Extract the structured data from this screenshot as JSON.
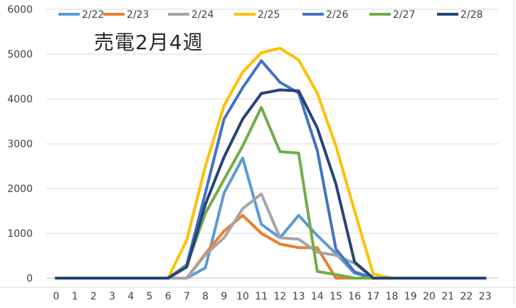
{
  "chart_data": {
    "type": "line",
    "title": "売電2月4週",
    "xlabel": "",
    "ylabel": "",
    "x": [
      0,
      1,
      2,
      3,
      4,
      5,
      6,
      7,
      8,
      9,
      10,
      11,
      12,
      13,
      14,
      15,
      16,
      17,
      18,
      19,
      20,
      21,
      22,
      23
    ],
    "ylim": [
      0,
      6000
    ],
    "yticks": [
      0,
      1000,
      2000,
      3000,
      4000,
      5000,
      6000
    ],
    "grid": true,
    "legend_position": "top",
    "series": [
      {
        "name": "2/22",
        "color": "#5b9bd5",
        "values": [
          0,
          0,
          0,
          0,
          0,
          0,
          0,
          0,
          230,
          1900,
          2680,
          1200,
          900,
          1400,
          950,
          550,
          110,
          0,
          0,
          0,
          0,
          0,
          0,
          0
        ]
      },
      {
        "name": "2/23",
        "color": "#ed7d31",
        "values": [
          0,
          0,
          0,
          0,
          0,
          0,
          0,
          0,
          550,
          1050,
          1400,
          1000,
          760,
          680,
          680,
          0,
          0,
          0,
          0,
          0,
          0,
          0,
          0,
          0
        ]
      },
      {
        "name": "2/24",
        "color": "#a5a5a5",
        "values": [
          0,
          0,
          0,
          0,
          0,
          0,
          0,
          0,
          520,
          900,
          1550,
          1880,
          900,
          870,
          580,
          510,
          330,
          0,
          0,
          0,
          0,
          0,
          0,
          0
        ]
      },
      {
        "name": "2/25",
        "color": "#ffc000",
        "values": [
          0,
          0,
          0,
          0,
          0,
          0,
          0,
          850,
          2500,
          3850,
          4600,
          5030,
          5130,
          4870,
          4130,
          2950,
          1500,
          90,
          0,
          0,
          0,
          0,
          0,
          0
        ]
      },
      {
        "name": "2/26",
        "color": "#4472c4",
        "values": [
          0,
          0,
          0,
          0,
          0,
          0,
          0,
          300,
          1900,
          3550,
          4250,
          4850,
          4370,
          4130,
          2850,
          650,
          140,
          0,
          0,
          0,
          0,
          0,
          0,
          0
        ]
      },
      {
        "name": "2/27",
        "color": "#70ad47",
        "values": [
          0,
          0,
          0,
          0,
          0,
          0,
          0,
          280,
          1450,
          2200,
          2950,
          3810,
          2820,
          2790,
          150,
          80,
          0,
          0,
          0,
          0,
          0,
          0,
          0,
          0
        ]
      },
      {
        "name": "2/28",
        "color": "#264478",
        "values": [
          0,
          0,
          0,
          0,
          0,
          0,
          0,
          250,
          1650,
          2700,
          3550,
          4120,
          4200,
          4180,
          3350,
          2100,
          360,
          0,
          0,
          0,
          0,
          0,
          0,
          0
        ]
      }
    ]
  }
}
